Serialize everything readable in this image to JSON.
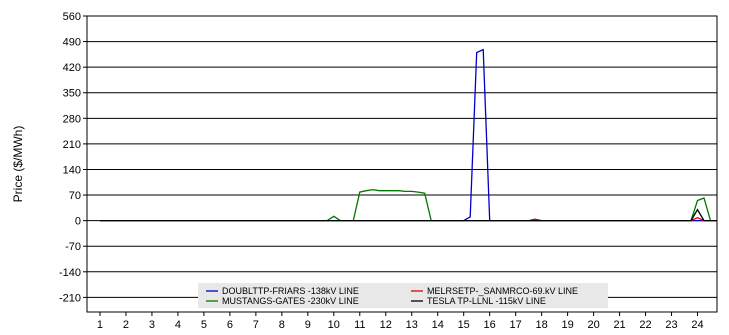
{
  "chart_data": {
    "type": "line",
    "ylabel": "Price ($/MWh)",
    "y_ticks": [
      560,
      490,
      420,
      350,
      280,
      210,
      140,
      70,
      0,
      -70,
      -140,
      -210
    ],
    "ylim": [
      -210,
      560
    ],
    "x_ticks": [
      "1",
      "2",
      "3",
      "4",
      "5",
      "6",
      "7",
      "8",
      "9",
      "10",
      "11",
      "12",
      "13",
      "14",
      "15",
      "16",
      "17",
      "18",
      "19",
      "20",
      "21",
      "22",
      "23",
      "24"
    ],
    "xlim": [
      0.5,
      24.75
    ],
    "grid": true,
    "legend_position": "bottom-center",
    "colors": {
      "blue": "#0000cc",
      "green": "#007700",
      "red": "#dd0000",
      "black": "#000000",
      "legend_bg": "#e8e8e8"
    },
    "series": [
      {
        "name": "DOUBLTTP-FRIARS  -138kV LINE",
        "color": "#0000cc",
        "x": [
          1,
          15.0,
          15.25,
          15.5,
          15.75,
          16.0,
          24.75
        ],
        "y": [
          0,
          0,
          10,
          460,
          468,
          0,
          0
        ]
      },
      {
        "name": "MELRSETP-_SANMRCO-69.kV LINE",
        "color": "#dd0000",
        "x": [
          1,
          17.5,
          17.75,
          18.0,
          23.75,
          24.0,
          24.25,
          24.75
        ],
        "y": [
          0,
          0,
          4,
          0,
          0,
          8,
          0,
          0
        ]
      },
      {
        "name": "MUSTANGS-GATES  -230kV LINE",
        "color": "#007700",
        "x": [
          1,
          9.75,
          10.0,
          10.25,
          10.75,
          11.0,
          11.25,
          11.5,
          11.75,
          12.0,
          12.25,
          12.5,
          12.75,
          13.0,
          13.25,
          13.5,
          13.75,
          23.75,
          24.0,
          24.25,
          24.5,
          24.75
        ],
        "y": [
          0,
          0,
          12,
          0,
          0,
          78,
          82,
          85,
          82,
          82,
          82,
          82,
          80,
          80,
          78,
          75,
          0,
          0,
          55,
          62,
          0,
          0
        ]
      },
      {
        "name": "TESLA TP-LLNL    -115kV LINE",
        "color": "#000000",
        "x": [
          1,
          23.75,
          24.0,
          24.25,
          24.75
        ],
        "y": [
          0,
          0,
          30,
          0,
          0
        ]
      }
    ]
  }
}
